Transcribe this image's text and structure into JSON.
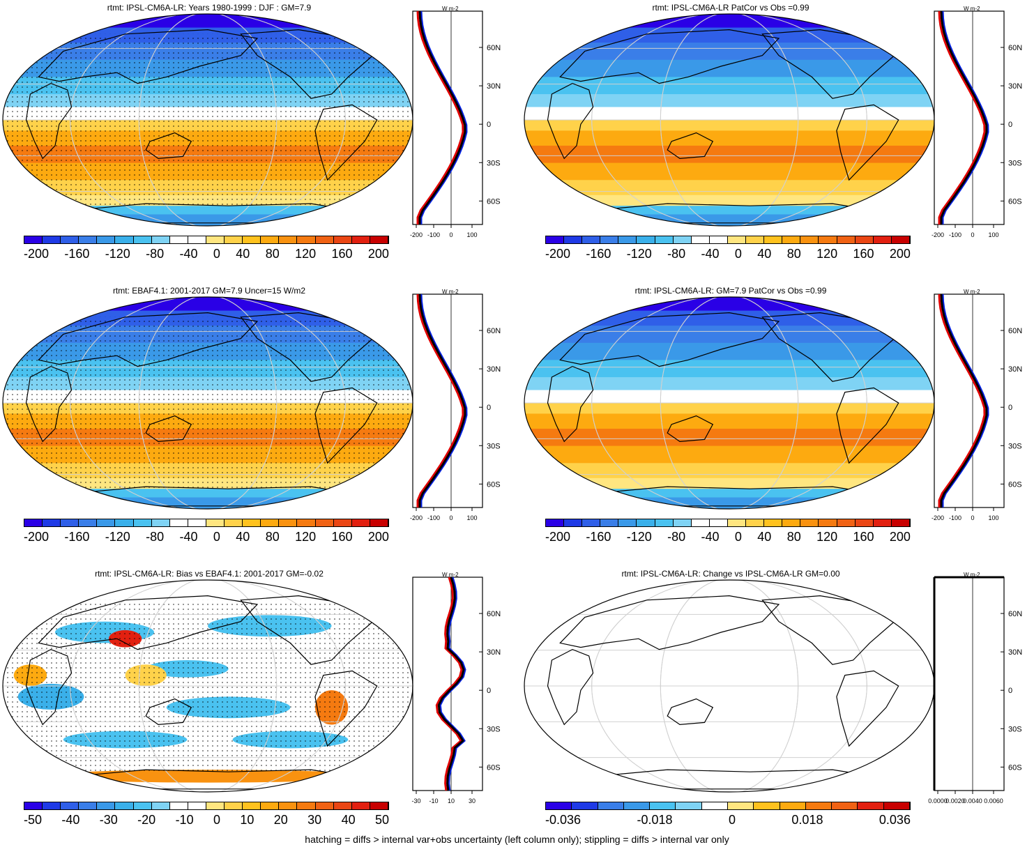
{
  "panels": [
    {
      "title": "rtmt: IPSL-CM6A-LR: Years 1980-1999 : DJF : GM=7.9",
      "scale": "wide",
      "cb_labels": [
        "-200",
        "-160",
        "-120",
        "-80",
        "-40",
        "0",
        "40",
        "80",
        "120",
        "160",
        "200"
      ],
      "zonal_ticks": [
        "-200",
        "-100",
        "0",
        "100"
      ],
      "style": "full",
      "stipple": true
    },
    {
      "title": "rtmt: IPSL-CM6A-LR PatCor vs Obs =0.99",
      "scale": "wide",
      "cb_labels": [
        "-200",
        "-160",
        "-120",
        "-80",
        "-40",
        "0",
        "40",
        "80",
        "120",
        "160",
        "200"
      ],
      "zonal_ticks": [
        "-200",
        "-100",
        "0",
        "100"
      ],
      "style": "full",
      "stipple": false
    },
    {
      "title": "rtmt: EBAF4.1: 2001-2017 GM=7.9 Uncer=15 W/m2",
      "scale": "wide",
      "cb_labels": [
        "-200",
        "-160",
        "-120",
        "-80",
        "-40",
        "0",
        "40",
        "80",
        "120",
        "160",
        "200"
      ],
      "zonal_ticks": [
        "-200",
        "-100",
        "0",
        "100"
      ],
      "style": "full",
      "stipple": true
    },
    {
      "title": "rtmt: IPSL-CM6A-LR: GM=7.9 PatCor vs Obs =0.99",
      "scale": "wide",
      "cb_labels": [
        "-200",
        "-160",
        "-120",
        "-80",
        "-40",
        "0",
        "40",
        "80",
        "120",
        "160",
        "200"
      ],
      "zonal_ticks": [
        "-200",
        "-100",
        "0",
        "100"
      ],
      "style": "full",
      "stipple": false
    },
    {
      "title": "rtmt: IPSL-CM6A-LR: Bias vs EBAF4.1: 2001-2017 GM=-0.02",
      "scale": "bias",
      "cb_labels": [
        "-50",
        "-40",
        "-30",
        "-20",
        "-10",
        "0",
        "10",
        "20",
        "30",
        "40",
        "50"
      ],
      "zonal_ticks": [
        "-30",
        "-10",
        "10",
        "30"
      ],
      "style": "bias",
      "stipple": true
    },
    {
      "title": "rtmt: IPSL-CM6A-LR: Change vs IPSL-CM6A-LR GM=0.00",
      "scale": "change",
      "cb_labels": [
        "-0.036",
        "-0.018",
        "0",
        "0.018",
        "0.036"
      ],
      "zonal_ticks": [
        "0.0000",
        "0.0020",
        "0.0040",
        "0.0060"
      ],
      "style": "blank",
      "stipple": false
    }
  ],
  "lat_labels": [
    "60N",
    "30N",
    "0",
    "30S",
    "60S"
  ],
  "zonal_unit": "W m-2",
  "palette": [
    "#2a00e6",
    "#1f3ae6",
    "#2f5fe8",
    "#3a7ee8",
    "#3a99e8",
    "#3ab0ea",
    "#4ac2f0",
    "#7fd3f4",
    "#ffffff",
    "#ffffff",
    "#ffe680",
    "#ffd24a",
    "#ffc21e",
    "#fdaa10",
    "#f99210",
    "#f57a10",
    "#f06214",
    "#ea4614",
    "#e22010",
    "#c80000"
  ],
  "footer": "hatching = diffs > internal var+obs uncertainty (left column only); stippling = diffs > internal var only"
}
